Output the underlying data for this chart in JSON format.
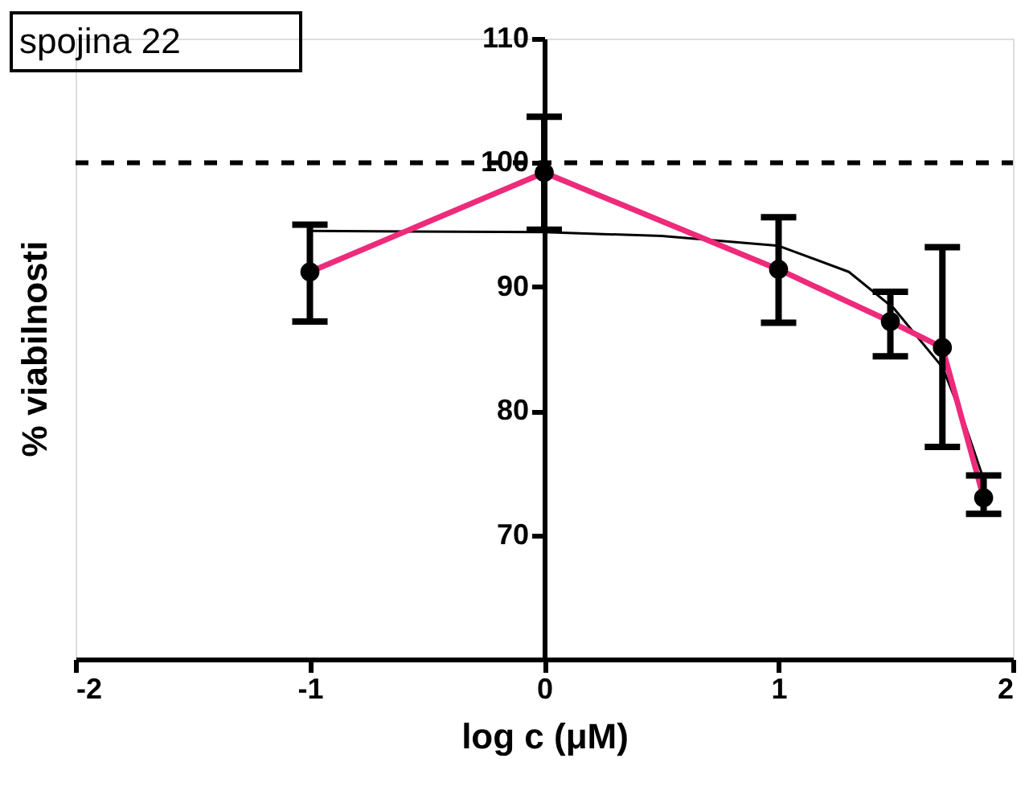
{
  "chart_data": {
    "type": "line",
    "xlabel": "log c (μM)",
    "ylabel": "% viabilnosti",
    "annotations": [
      "spojina 22"
    ],
    "xlim": [
      -2,
      2
    ],
    "xticks": [
      -2,
      -1,
      0,
      1,
      2
    ],
    "ylim": [
      60,
      110
    ],
    "yticks": [
      70,
      80,
      90,
      100,
      110
    ],
    "grid": false,
    "series": [
      {
        "type": "line",
        "color": "#000000",
        "marker": "none",
        "x": [
          -1,
          0,
          0.5,
          1,
          1.3,
          1.49,
          1.7,
          1.79,
          1.875
        ],
        "values": [
          94.5,
          94.4,
          94.1,
          93.3,
          91.2,
          88.3,
          83.5,
          79.2,
          74.5
        ]
      },
      {
        "type": "line",
        "color": "#ee2a7b",
        "marker": "circle",
        "x": [
          -1,
          0,
          1,
          1.477,
          1.699,
          1.875
        ],
        "values": [
          91.2,
          99.2,
          91.4,
          87.2,
          85.1,
          73.0
        ],
        "errors": [
          [
            87.2,
            95.0
          ],
          [
            94.6,
            103.7
          ],
          [
            87.1,
            95.6
          ],
          [
            84.4,
            89.6
          ],
          [
            77.1,
            93.2
          ],
          [
            71.7,
            74.8
          ]
        ]
      }
    ],
    "ref_lines": [
      {
        "axis": "y",
        "value": 100,
        "line_style": "dashed",
        "color": "#000000"
      }
    ]
  }
}
